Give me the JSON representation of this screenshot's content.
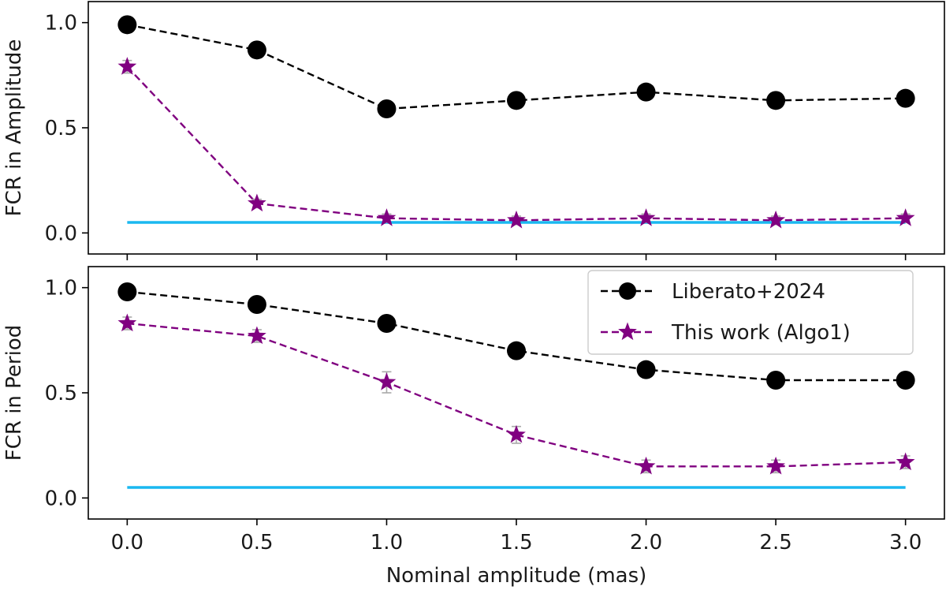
{
  "chart_data": [
    {
      "type": "line",
      "panel": "top",
      "ylabel": "FCR in Amplitude",
      "xlabel": "",
      "xlim": [
        -0.15,
        3.15
      ],
      "ylim": [
        -0.1,
        1.1
      ],
      "yticks": [
        "0.0",
        "0.5",
        "1.0"
      ],
      "reference_line": {
        "y": 0.05,
        "x": [
          0.0,
          3.0
        ],
        "color": "#1ab8f0"
      },
      "x": [
        0.0,
        0.5,
        1.0,
        1.5,
        2.0,
        2.5,
        3.0
      ],
      "series": [
        {
          "key": "liberato",
          "marker": "circle",
          "color": "#000000",
          "values": [
            0.99,
            0.87,
            0.59,
            0.63,
            0.67,
            0.63,
            0.64
          ],
          "errors": [
            0.02,
            0.02,
            0.03,
            0.03,
            0.03,
            0.03,
            0.03
          ]
        },
        {
          "key": "algo1",
          "marker": "star",
          "color": "#800080",
          "values": [
            0.79,
            0.14,
            0.07,
            0.06,
            0.07,
            0.06,
            0.07
          ],
          "errors": [
            0.03,
            0.02,
            0.02,
            0.02,
            0.02,
            0.02,
            0.02
          ]
        }
      ],
      "grid": false
    },
    {
      "type": "line",
      "panel": "bottom",
      "ylabel": "FCR in Period",
      "xlabel": "Nominal amplitude (mas)",
      "xlim": [
        -0.15,
        3.15
      ],
      "ylim": [
        -0.1,
        1.1
      ],
      "xticks": [
        "0.0",
        "0.5",
        "1.0",
        "1.5",
        "2.0",
        "2.5",
        "3.0"
      ],
      "yticks": [
        "0.0",
        "0.5",
        "1.0"
      ],
      "reference_line": {
        "y": 0.05,
        "x": [
          0.0,
          3.0
        ],
        "color": "#1ab8f0"
      },
      "x": [
        0.0,
        0.5,
        1.0,
        1.5,
        2.0,
        2.5,
        3.0
      ],
      "series": [
        {
          "key": "liberato",
          "name": "Liberato+2024",
          "marker": "circle",
          "color": "#000000",
          "values": [
            0.98,
            0.92,
            0.83,
            0.7,
            0.61,
            0.56,
            0.56
          ],
          "errors": [
            0.02,
            0.03,
            0.03,
            0.03,
            0.03,
            0.03,
            0.03
          ]
        },
        {
          "key": "algo1",
          "name": "This work (Algo1)",
          "marker": "star",
          "color": "#800080",
          "values": [
            0.83,
            0.77,
            0.55,
            0.3,
            0.15,
            0.15,
            0.17
          ],
          "errors": [
            0.03,
            0.03,
            0.05,
            0.04,
            0.03,
            0.03,
            0.03
          ]
        }
      ],
      "legend": {
        "position": "upper-right",
        "entries": [
          "Liberato+2024",
          "This work (Algo1)"
        ]
      },
      "grid": false
    }
  ]
}
